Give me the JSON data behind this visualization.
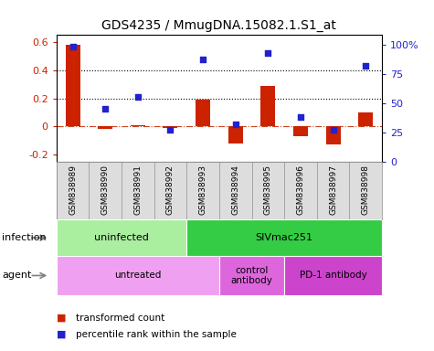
{
  "title": "GDS4235 / MmugDNA.15082.1.S1_at",
  "samples": [
    "GSM838989",
    "GSM838990",
    "GSM838991",
    "GSM838992",
    "GSM838993",
    "GSM838994",
    "GSM838995",
    "GSM838996",
    "GSM838997",
    "GSM838998"
  ],
  "transformed_count": [
    0.58,
    -0.02,
    0.01,
    -0.01,
    0.19,
    -0.12,
    0.29,
    -0.07,
    -0.13,
    0.1
  ],
  "percentile_rank": [
    98,
    45,
    55,
    27,
    87,
    32,
    93,
    38,
    27,
    82
  ],
  "ylim_left": [
    -0.25,
    0.65
  ],
  "ylim_right": [
    0,
    108
  ],
  "yticks_left": [
    -0.2,
    0.0,
    0.2,
    0.4,
    0.6
  ],
  "ytick_labels_left": [
    "-0.2",
    "0",
    "0.2",
    "0.4",
    "0.6"
  ],
  "yticks_right": [
    0,
    25,
    50,
    75,
    100
  ],
  "ytick_labels_right": [
    "0",
    "25",
    "50",
    "75",
    "100%"
  ],
  "hlines": [
    0.2,
    0.4
  ],
  "zero_dashline": 0.0,
  "bar_color": "#cc2200",
  "dot_color": "#2222cc",
  "zero_line_color": "#cc4422",
  "infection_groups": [
    {
      "label": "uninfected",
      "start": 0,
      "end": 4,
      "color": "#aaeea0"
    },
    {
      "label": "SIVmac251",
      "start": 4,
      "end": 10,
      "color": "#33cc44"
    }
  ],
  "agent_groups": [
    {
      "label": "untreated",
      "start": 0,
      "end": 5,
      "color": "#f0a0f0"
    },
    {
      "label": "control\nantibody",
      "start": 5,
      "end": 7,
      "color": "#dd66dd"
    },
    {
      "label": "PD-1 antibody",
      "start": 7,
      "end": 10,
      "color": "#cc44cc"
    }
  ],
  "legend_items": [
    {
      "label": "transformed count",
      "color": "#cc2200"
    },
    {
      "label": "percentile rank within the sample",
      "color": "#2222cc"
    }
  ],
  "infection_label": "infection",
  "agent_label": "agent",
  "cell_color": "#dddddd",
  "cell_border_color": "#999999"
}
